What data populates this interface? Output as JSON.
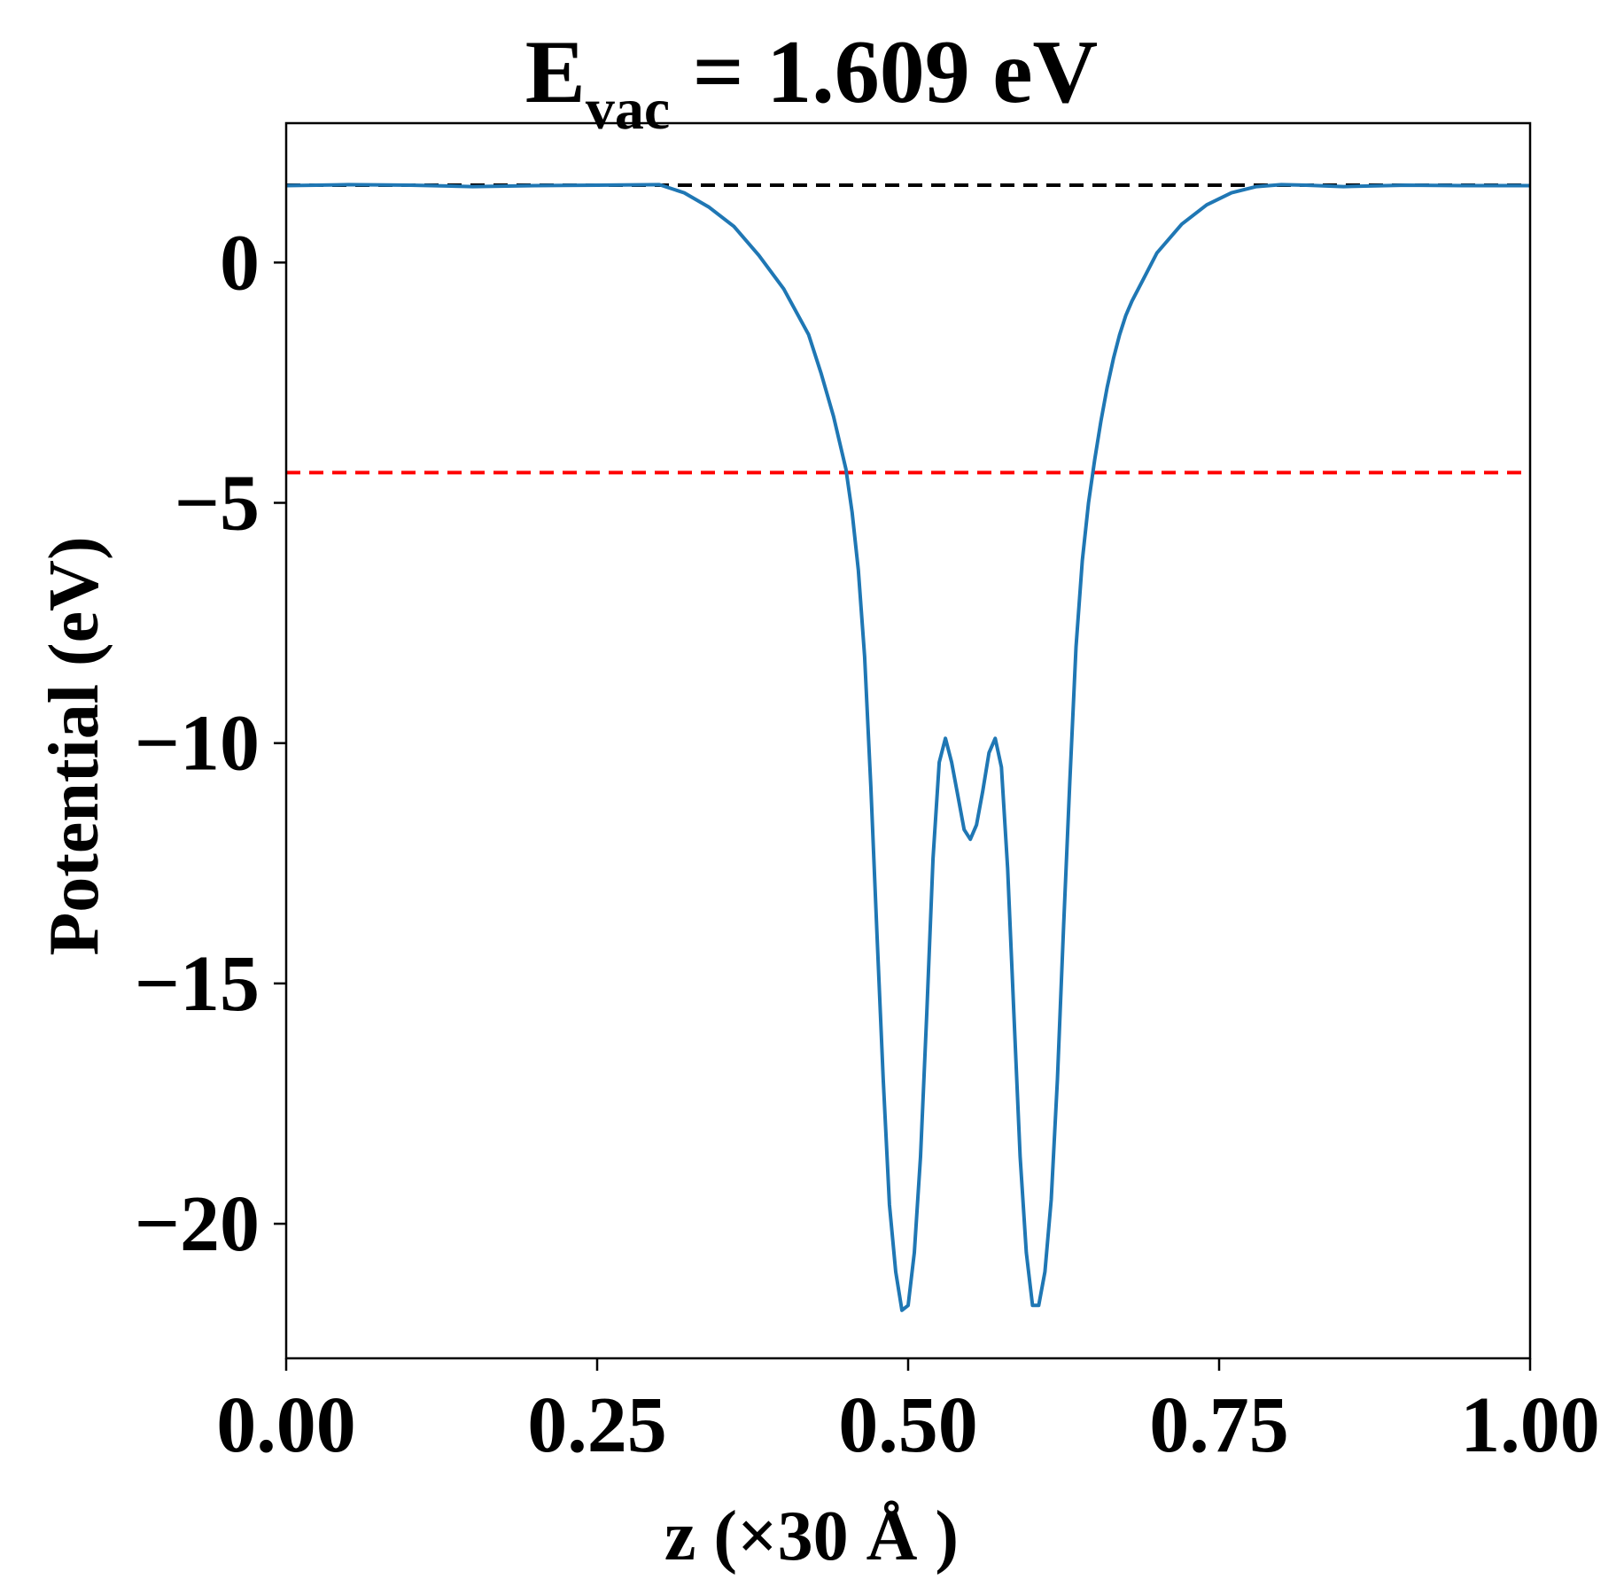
{
  "chart_data": {
    "type": "line",
    "title": {
      "main": "E",
      "subscript": "vac",
      "rest": " = 1.609 eV"
    },
    "xlabel": "z (×30 Å )",
    "ylabel": "Potential (eV)",
    "xlim": [
      0,
      1
    ],
    "ylim": [
      -22.8,
      2.9
    ],
    "x_ticks": [
      {
        "value": 0.0,
        "label": "0.00"
      },
      {
        "value": 0.25,
        "label": "0.25"
      },
      {
        "value": 0.5,
        "label": "0.50"
      },
      {
        "value": 0.75,
        "label": "0.75"
      },
      {
        "value": 1.0,
        "label": "1.00"
      }
    ],
    "y_ticks": [
      {
        "value": 0,
        "label": "0"
      },
      {
        "value": -5,
        "label": "−5"
      },
      {
        "value": -10,
        "label": "−10"
      },
      {
        "value": -15,
        "label": "−15"
      },
      {
        "value": -20,
        "label": "−20"
      }
    ],
    "grid": false,
    "reference_lines": [
      {
        "kind": "vacuum-level",
        "y": 1.609,
        "color": "#000000",
        "style": "dashed"
      },
      {
        "kind": "fermi-level",
        "y": -4.37,
        "color": "#ff0000",
        "style": "dashed"
      }
    ],
    "series": [
      {
        "color": "#1f77b4",
        "x": [
          0.0,
          0.05,
          0.1,
          0.15,
          0.2,
          0.25,
          0.3,
          0.32,
          0.34,
          0.36,
          0.38,
          0.4,
          0.42,
          0.43,
          0.44,
          0.45,
          0.455,
          0.46,
          0.465,
          0.47,
          0.475,
          0.48,
          0.485,
          0.49,
          0.495,
          0.5,
          0.505,
          0.51,
          0.515,
          0.52,
          0.525,
          0.53,
          0.535,
          0.54,
          0.545,
          0.55,
          0.555,
          0.56,
          0.565,
          0.57,
          0.575,
          0.58,
          0.585,
          0.59,
          0.595,
          0.6,
          0.605,
          0.61,
          0.615,
          0.62,
          0.625,
          0.63,
          0.635,
          0.64,
          0.645,
          0.65,
          0.655,
          0.66,
          0.665,
          0.67,
          0.675,
          0.68,
          0.69,
          0.7,
          0.72,
          0.74,
          0.76,
          0.78,
          0.8,
          0.82,
          0.85,
          0.9,
          0.95,
          1.0
        ],
        "y": [
          1.6,
          1.62,
          1.61,
          1.58,
          1.6,
          1.61,
          1.62,
          1.45,
          1.15,
          0.75,
          0.15,
          -0.55,
          -1.5,
          -2.3,
          -3.2,
          -4.3,
          -5.2,
          -6.4,
          -8.2,
          -10.9,
          -14.0,
          -17.0,
          -19.6,
          -21.0,
          -21.8,
          -21.7,
          -20.6,
          -18.6,
          -15.6,
          -12.4,
          -10.4,
          -9.9,
          -10.4,
          -11.1,
          -11.8,
          -12.0,
          -11.7,
          -11.0,
          -10.2,
          -9.9,
          -10.5,
          -12.6,
          -15.6,
          -18.6,
          -20.6,
          -21.7,
          -21.7,
          -21.0,
          -19.5,
          -17.0,
          -13.8,
          -10.8,
          -8.0,
          -6.2,
          -5.0,
          -4.1,
          -3.3,
          -2.6,
          -2.0,
          -1.5,
          -1.1,
          -0.8,
          -0.3,
          0.2,
          0.8,
          1.2,
          1.45,
          1.58,
          1.62,
          1.61,
          1.58,
          1.61,
          1.6,
          1.6
        ]
      }
    ]
  }
}
